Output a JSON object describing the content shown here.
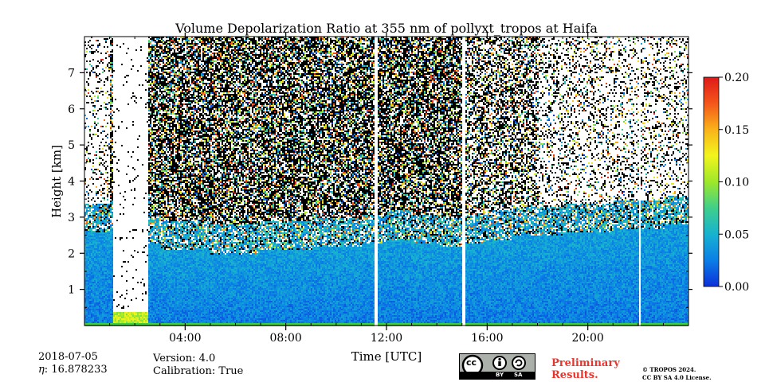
{
  "chart_data": {
    "type": "heatmap",
    "title": "Volume Depolarization Ratio at 355 nm of pollyxt_tropos at Haifa",
    "xlabel": "Time [UTC]",
    "ylabel": "Height [km]",
    "x_ticks": [
      "04:00",
      "08:00",
      "12:00",
      "16:00",
      "20:00"
    ],
    "x_tick_hours": [
      4,
      8,
      12,
      16,
      20
    ],
    "xlim_hours": [
      0,
      24
    ],
    "y_ticks": [
      "1",
      "2",
      "3",
      "4",
      "5",
      "6",
      "7"
    ],
    "y_tick_values": [
      1,
      2,
      3,
      4,
      5,
      6,
      7
    ],
    "ylim": [
      0,
      8
    ],
    "colorbar": {
      "ticks": [
        "0.00",
        "0.05",
        "0.10",
        "0.15",
        "0.20"
      ],
      "tick_values": [
        0.0,
        0.05,
        0.1,
        0.15,
        0.2
      ],
      "range": [
        0.0,
        0.2
      ],
      "colormap": [
        "#0d2fd9",
        "#0b7fe6",
        "#17b2d0",
        "#3fcf8c",
        "#9de82a",
        "#f2f51c",
        "#f9b31a",
        "#f4561a",
        "#de1a1a"
      ]
    },
    "data_gaps_hours": [
      [
        11.5,
        11.6
      ],
      [
        15.0,
        15.1
      ],
      [
        22.0,
        22.1
      ]
    ],
    "low_signal_intervals_hours": [
      [
        1.1,
        2.5
      ]
    ],
    "aerosol_layer_top_km": [
      2.6,
      2.7,
      2.3,
      2.1,
      2.1,
      2.0,
      2.0,
      2.1,
      2.1,
      2.2,
      2.2,
      2.3,
      2.4,
      2.3,
      2.2,
      2.3,
      2.4,
      2.5,
      2.5,
      2.6,
      2.6,
      2.7,
      2.7,
      2.8
    ]
  },
  "footer": {
    "date": "2018-07-05",
    "eta": "16.878233",
    "eta_symbol": "η",
    "eta_sep": ": ",
    "version": "Version: 4.0",
    "calibration": "Calibration: True",
    "preliminary": [
      "Preliminary",
      "Results."
    ],
    "copyright": [
      "© TROPOS 2024.",
      "CC BY SA 4.0 License."
    ],
    "cc_badge": [
      "cc",
      "BY",
      "SA"
    ]
  }
}
